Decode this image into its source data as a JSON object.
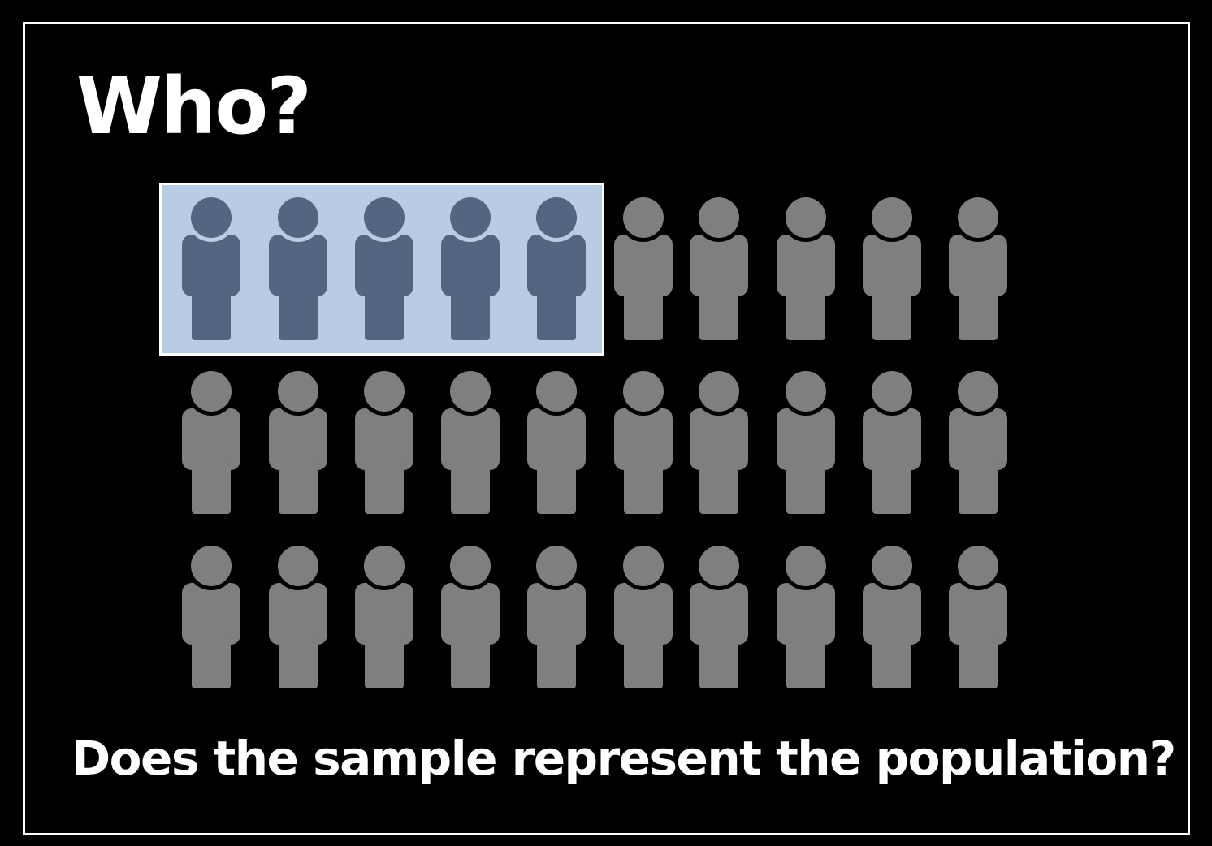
{
  "slide": {
    "title": "Who?",
    "question": "Does the sample represent the population?"
  },
  "figure": {
    "rows": 3,
    "columns": 10,
    "sample_count": 5,
    "icon": "person-icon",
    "colors": {
      "background": "#000000",
      "frame": "#ffffff",
      "text": "#ffffff",
      "sample_person": "#536580",
      "population_person": "#7f7f7f",
      "sample_box_fill": "#b8cce4",
      "sample_box_border": "#ffffff"
    }
  }
}
